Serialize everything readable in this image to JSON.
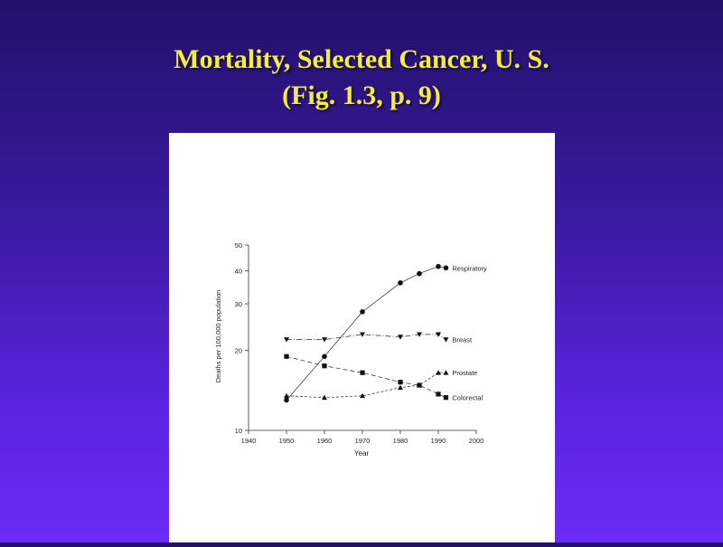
{
  "slide": {
    "title_line1": "Mortality, Selected Cancer, U. S.",
    "title_line2": "(Fig. 1.3, p. 9)",
    "title_color": "#f2ee3a"
  },
  "chart_data": {
    "type": "line",
    "xlabel": "Year",
    "ylabel": "Deaths per 100,000 population",
    "xlim": [
      1940,
      2000
    ],
    "ylim": [
      10,
      50
    ],
    "y_scale": "log",
    "x_ticks": [
      1940,
      1950,
      1960,
      1970,
      1980,
      1990,
      2000
    ],
    "y_ticks": [
      10,
      20,
      30,
      40,
      50
    ],
    "grid": false,
    "legend": "labels at line ends",
    "series": [
      {
        "name": "Respiratory",
        "marker": "circle",
        "x": [
          1950,
          1960,
          1970,
          1980,
          1985,
          1990,
          1992
        ],
        "y": [
          13,
          19,
          28,
          36,
          39,
          41.5,
          41
        ]
      },
      {
        "name": "Breast",
        "marker": "triangle-down",
        "x": [
          1950,
          1960,
          1970,
          1980,
          1985,
          1990,
          1992
        ],
        "y": [
          22,
          22,
          23,
          22.5,
          23,
          23,
          22
        ]
      },
      {
        "name": "Prostate",
        "marker": "triangle-up",
        "x": [
          1950,
          1960,
          1970,
          1980,
          1985,
          1990,
          1992
        ],
        "y": [
          13.5,
          13.3,
          13.5,
          14.5,
          14.8,
          16.5,
          16.5
        ]
      },
      {
        "name": "Colorectal",
        "marker": "square",
        "x": [
          1950,
          1960,
          1970,
          1980,
          1985,
          1990,
          1992
        ],
        "y": [
          19,
          17.5,
          16.5,
          15.2,
          14.8,
          13.7,
          13.3
        ]
      }
    ]
  }
}
